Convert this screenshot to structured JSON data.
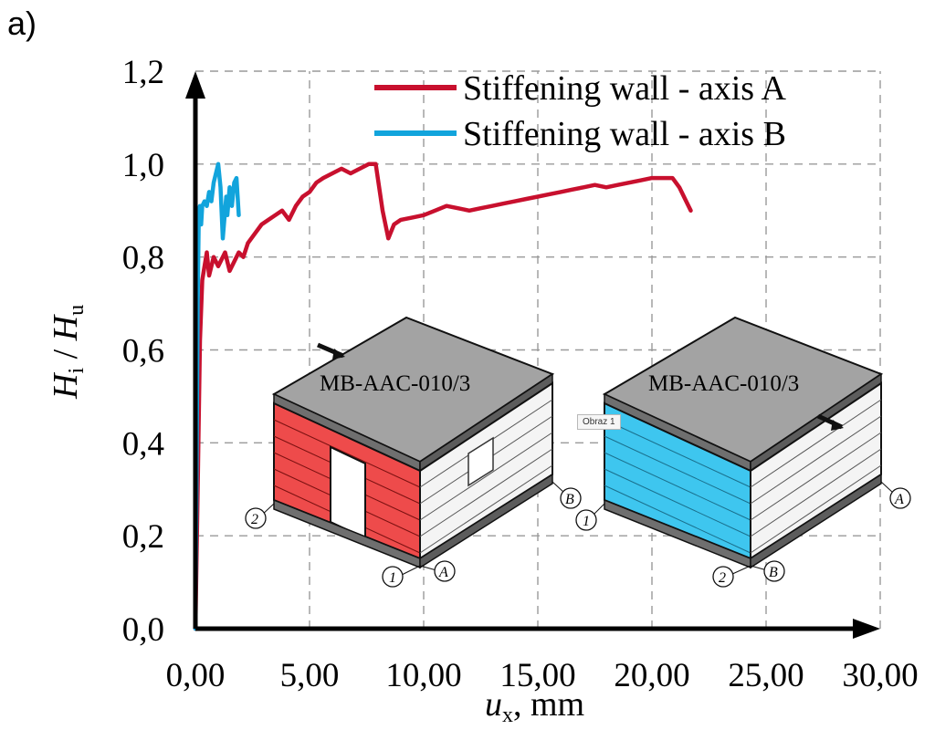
{
  "panel_label": "a)",
  "overlay_tag": "Obraz 1",
  "chart_data": {
    "type": "line",
    "title": "",
    "xlabel": "u",
    "xlabel_sub": "x",
    "xlabel_unit": ", mm",
    "ylabel": "H",
    "ylabel_sub_num": "i",
    "ylabel_sep": " / ",
    "ylabel_den": "H",
    "ylabel_sub_den": "u",
    "xlim": [
      0,
      30
    ],
    "ylim": [
      0,
      1.2
    ],
    "x_ticks": [
      0,
      5,
      10,
      15,
      20,
      25,
      30
    ],
    "x_tick_labels": [
      "0,00",
      "5,00",
      "10,00",
      "15,00",
      "20,00",
      "25,00",
      "30,00"
    ],
    "y_ticks": [
      0,
      0.2,
      0.4,
      0.6,
      0.8,
      1.0,
      1.2
    ],
    "y_tick_labels": [
      "0,0",
      "0,2",
      "0,4",
      "0,6",
      "0,8",
      "1,0",
      "1,2"
    ],
    "grid": true,
    "legend_position": "top-right",
    "series": [
      {
        "name": "Stiffening wall - axis A",
        "color": "#c8102e",
        "x": [
          0,
          0.1,
          0.2,
          0.3,
          0.4,
          0.5,
          0.6,
          0.8,
          1.0,
          1.2,
          1.3,
          1.5,
          1.7,
          1.9,
          2.1,
          2.3,
          2.6,
          2.9,
          3.2,
          3.5,
          3.8,
          4.1,
          4.4,
          4.7,
          5.0,
          5.3,
          5.6,
          6.0,
          6.4,
          6.8,
          7.2,
          7.6,
          7.9,
          8.2,
          8.45,
          8.7,
          9.0,
          9.5,
          10.0,
          10.5,
          11.0,
          11.5,
          12.0,
          12.5,
          13.0,
          13.5,
          14.0,
          14.5,
          15.0,
          15.5,
          16.0,
          16.5,
          17.0,
          17.5,
          18.0,
          18.5,
          19.0,
          19.5,
          20.0,
          20.5,
          20.9,
          21.2,
          21.5,
          21.7
        ],
        "y": [
          0,
          0.3,
          0.62,
          0.75,
          0.78,
          0.81,
          0.76,
          0.8,
          0.78,
          0.8,
          0.81,
          0.77,
          0.79,
          0.81,
          0.8,
          0.83,
          0.85,
          0.87,
          0.88,
          0.89,
          0.9,
          0.88,
          0.91,
          0.93,
          0.94,
          0.96,
          0.97,
          0.98,
          0.99,
          0.98,
          0.99,
          1.0,
          1.0,
          0.9,
          0.84,
          0.87,
          0.88,
          0.885,
          0.89,
          0.9,
          0.91,
          0.905,
          0.9,
          0.905,
          0.91,
          0.915,
          0.92,
          0.925,
          0.93,
          0.935,
          0.94,
          0.945,
          0.95,
          0.955,
          0.95,
          0.955,
          0.96,
          0.965,
          0.97,
          0.97,
          0.97,
          0.95,
          0.92,
          0.9
        ]
      },
      {
        "name": "Stiffening wall - axis B",
        "color": "#12a4dc",
        "x": [
          0,
          0.05,
          0.1,
          0.15,
          0.2,
          0.25,
          0.3,
          0.4,
          0.5,
          0.6,
          0.7,
          0.8,
          0.9,
          1.0,
          1.1,
          1.2,
          1.3,
          1.35,
          1.4,
          1.5,
          1.6,
          1.7,
          1.8,
          1.9
        ],
        "y": [
          0,
          0.35,
          0.7,
          0.9,
          0.91,
          0.87,
          0.91,
          0.92,
          0.91,
          0.94,
          0.92,
          0.96,
          0.98,
          1.0,
          0.95,
          0.84,
          0.9,
          0.93,
          0.89,
          0.95,
          0.91,
          0.96,
          0.97,
          0.89
        ]
      }
    ],
    "annotations": [
      {
        "text": "MB-AAC-010/3",
        "target": "axis A building model"
      },
      {
        "text": "MB-AAC-010/3",
        "target": "axis B building model"
      }
    ],
    "axis_markers_left": [
      "2",
      "1",
      "A",
      "B"
    ],
    "axis_markers_right": [
      "1",
      "2",
      "B",
      "A"
    ]
  }
}
